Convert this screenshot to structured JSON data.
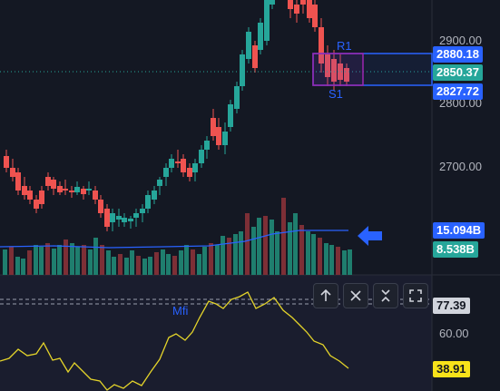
{
  "axis": {
    "price_labels": [
      "2900.00",
      "2800.00",
      "2700.00"
    ],
    "indicator_labels": [
      "60.00"
    ]
  },
  "tags": {
    "r1_price": "2880.18",
    "current_price": "2850.37",
    "s1_price": "2827.72",
    "volume_ma": "15.094B",
    "volume": "8.538B",
    "mfi_upper": "77.39",
    "mfi_value": "38.91"
  },
  "levels": {
    "r1_label": "R1",
    "s1_label": "S1"
  },
  "indicator": {
    "name": "Mfi"
  },
  "toolbar": {
    "up_icon": "arrow-up-icon",
    "close_icon": "close-icon",
    "collapse_icon": "collapse-icon",
    "fullscreen_icon": "fullscreen-icon"
  },
  "colors": {
    "background": "#141823",
    "up": "#26a69a",
    "down": "#ef5350",
    "volume_up": "#1f7e6e",
    "volume_down": "#7d2f36",
    "volume_ma_line": "#2962ff",
    "mfi_line": "#e4d42a",
    "level_box": "#2962ff",
    "range_box": "#9c27b0",
    "tag_blue": "#2962ff",
    "tag_green": "#26a69a",
    "tag_yellow": "#f7e21a",
    "tag_gray": "#d1d4dc"
  }
}
